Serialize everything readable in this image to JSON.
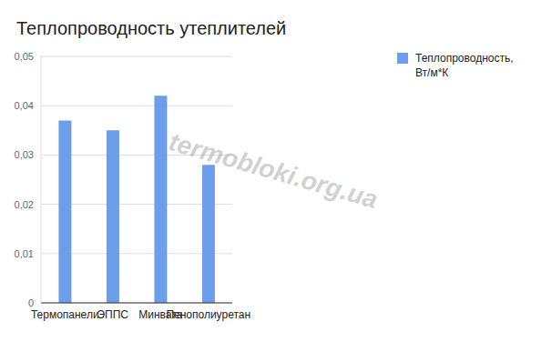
{
  "chart_data": {
    "type": "bar",
    "title": "Теплопроводность утеплителей",
    "categories": [
      "Термопанели",
      "ЭППС",
      "Минвата",
      "Пенополиуретан"
    ],
    "series": [
      {
        "name": "Теплопроводность, Вт/м*К",
        "color": "#6d9eeb",
        "values": [
          0.037,
          0.035,
          0.042,
          0.028
        ]
      }
    ],
    "ylim": [
      0,
      0.05
    ],
    "yticks": [
      0,
      {
        "value": 0.01,
        "label": "0,01"
      },
      {
        "value": 0.02,
        "label": "0,02"
      },
      {
        "value": 0.03,
        "label": "0,03"
      },
      {
        "value": 0.04,
        "label": "0,04"
      },
      {
        "value": 0.05,
        "label": "0,05"
      }
    ],
    "grid": true,
    "legend": "right",
    "annotations": [
      "termobloki.org.ua"
    ]
  }
}
